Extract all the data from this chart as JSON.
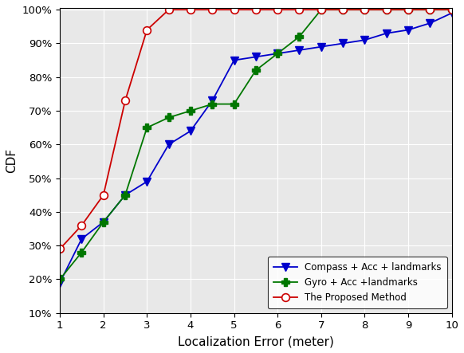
{
  "blue_x": [
    1,
    1.5,
    2,
    2.5,
    3,
    3.5,
    4,
    4.5,
    5,
    5.5,
    6,
    6.5,
    7,
    7.5,
    8,
    8.5,
    9,
    9.5,
    10
  ],
  "blue_y": [
    0.19,
    0.32,
    0.37,
    0.45,
    0.49,
    0.6,
    0.64,
    0.73,
    0.85,
    0.86,
    0.87,
    0.88,
    0.89,
    0.9,
    0.91,
    0.93,
    0.94,
    0.96,
    0.99
  ],
  "green_x": [
    1,
    1.5,
    2,
    2.5,
    3,
    3.5,
    4,
    4.5,
    5,
    5.5,
    6,
    6.5,
    7,
    7.5,
    8,
    8.5,
    9,
    9.5,
    10
  ],
  "green_y": [
    0.2,
    0.28,
    0.37,
    0.45,
    0.65,
    0.68,
    0.7,
    0.72,
    0.72,
    0.82,
    0.87,
    0.92,
    1.0,
    1.0,
    1.0,
    1.0,
    1.0,
    1.0,
    1.0
  ],
  "red_x": [
    1,
    1.5,
    2,
    2.5,
    3,
    3.5,
    4,
    4.5,
    5,
    5.5,
    6,
    6.5,
    7,
    7.5,
    8,
    8.5,
    9,
    9.5,
    10
  ],
  "red_y": [
    0.29,
    0.36,
    0.45,
    0.73,
    0.94,
    1.0,
    1.0,
    1.0,
    1.0,
    1.0,
    1.0,
    1.0,
    1.0,
    1.0,
    1.0,
    1.0,
    1.0,
    1.0,
    1.0
  ],
  "blue_color": "#0000cc",
  "green_color": "#007700",
  "red_color": "#cc0000",
  "blue_label": "Compass + Acc + landmarks",
  "green_label": "Gyro + Acc +landmarks",
  "red_label": "The Proposed Method",
  "xlabel": "Localization Error (meter)",
  "ylabel": "CDF",
  "xlim": [
    1,
    10
  ],
  "ylim": [
    0.1,
    1.005
  ],
  "yticks": [
    0.1,
    0.2,
    0.3,
    0.4,
    0.5,
    0.6,
    0.7,
    0.8,
    0.9,
    1.0
  ],
  "xticks": [
    1,
    2,
    3,
    4,
    5,
    6,
    7,
    8,
    9,
    10
  ],
  "axes_facecolor": "#e8e8e8",
  "figure_facecolor": "#ffffff",
  "grid_color": "#ffffff"
}
